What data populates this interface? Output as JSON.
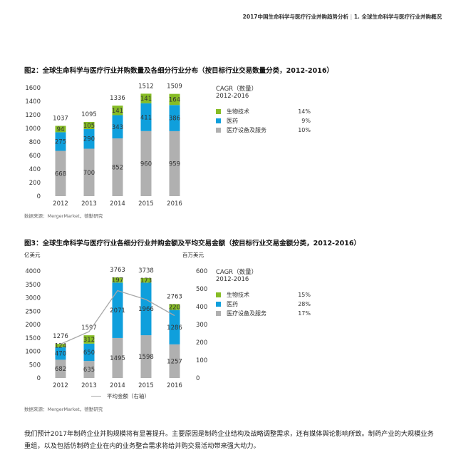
{
  "header": {
    "report_title": "2017中国生命科学与医疗行业并购趋势分析",
    "separator": "|",
    "section": "1. 全球生命科学与医疗行业并购概况"
  },
  "colors": {
    "biotech": "#86bc25",
    "pharma": "#0f9fdc",
    "devices": "#b0b0b0",
    "avg_line": "#a8a8a8"
  },
  "figure2": {
    "title": "图2：全球生命科学与医疗行业并购数量及各细分行业分布（按目标行业交易数量分类，2012-2016）",
    "source": "数据来源：MergerMarket，德勤研究",
    "legend": {
      "heading": "CAGR（数量）",
      "period": "2012-2016",
      "items": [
        {
          "name": "生物技术",
          "value": "14%",
          "color": "#86bc25"
        },
        {
          "name": "医药",
          "value": "9%",
          "color": "#0f9fdc"
        },
        {
          "name": "医疗设备及服务",
          "value": "10%",
          "color": "#b0b0b0"
        }
      ]
    }
  },
  "figure3": {
    "title": "图3：全球生命科学与医疗行业各细分行业并购金额及平均交易金额（按目标行业交易金额分类，2012-2016）",
    "source": "数据来源：MergerMarket，德勤研究",
    "left_unit": "亿美元",
    "right_unit": "百万美元",
    "line_legend": "平均金额（右轴）",
    "legend": {
      "heading": "CAGR（数量）",
      "period": "2012-2016",
      "items": [
        {
          "name": "生物技术",
          "value": "15%",
          "color": "#86bc25"
        },
        {
          "name": "医药",
          "value": "28%",
          "color": "#0f9fdc"
        },
        {
          "name": "医疗设备及服务",
          "value": "17%",
          "color": "#b0b0b0"
        }
      ]
    }
  },
  "bottom_text": "我们预计2017年制药企业并购规模将有显著提升。主要原因是制药企业结构及战略调整需求，还有媒体舆论影响所致。制药产业的大规模业务重组，以及包括仿制药企业在内的业务整合需求将给并购交易活动带来强大动力。",
  "chart_data": [
    {
      "type": "bar",
      "stacked": true,
      "categories": [
        "2012",
        "2013",
        "2014",
        "2015",
        "2016"
      ],
      "series": [
        {
          "name": "医疗设备及服务",
          "values": [
            668,
            700,
            852,
            960,
            959
          ]
        },
        {
          "name": "医药",
          "values": [
            275,
            290,
            343,
            411,
            386
          ]
        },
        {
          "name": "生物技术",
          "values": [
            94,
            105,
            141,
            141,
            164
          ]
        }
      ],
      "totals": [
        1037,
        1095,
        1336,
        1512,
        1509
      ],
      "ylim": [
        0,
        1600
      ],
      "yticks": [
        0,
        200,
        400,
        600,
        800,
        1000,
        1200,
        1400,
        1600
      ],
      "legend_position": "right"
    },
    {
      "type": "bar",
      "stacked": true,
      "categories": [
        "2012",
        "2013",
        "2014",
        "2015",
        "2016"
      ],
      "series": [
        {
          "name": "医疗设备及服务",
          "values": [
            682,
            635,
            1495,
            1598,
            1257
          ]
        },
        {
          "name": "医药",
          "values": [
            470,
            650,
            2071,
            1966,
            1286
          ]
        },
        {
          "name": "生物技术",
          "values": [
            124,
            312,
            197,
            173,
            220
          ]
        }
      ],
      "totals": [
        1276,
        1597,
        3763,
        3738,
        2763
      ],
      "ylim": [
        0,
        4000
      ],
      "yticks": [
        0,
        500,
        1000,
        1500,
        2000,
        2500,
        3000,
        3500,
        4000
      ],
      "line": {
        "name": "平均金额（右轴）",
        "values": [
          190,
          260,
          490,
          440,
          350
        ]
      },
      "y2lim": [
        0,
        600
      ],
      "y2ticks": [
        0,
        100,
        200,
        300,
        400,
        500,
        600
      ],
      "legend_position": "right"
    }
  ]
}
